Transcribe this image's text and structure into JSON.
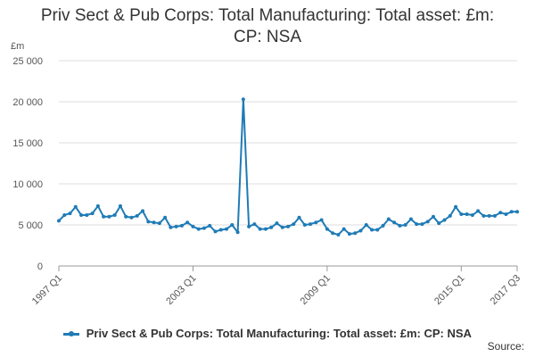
{
  "chart_data": {
    "type": "line",
    "title": "Priv Sect & Pub Corps: Total Manufacturing: Total asset: £m: CP: NSA",
    "ylabel": "£m",
    "ylim": [
      0,
      25000
    ],
    "yticks": [
      0,
      5000,
      10000,
      15000,
      20000,
      25000
    ],
    "ytick_labels": [
      "0",
      "5 000",
      "10 000",
      "15 000",
      "20 000",
      "25 000"
    ],
    "xtick_labels": [
      "1997 Q1",
      "2003 Q1",
      "2009 Q1",
      "2015 Q1",
      "2017 Q3"
    ],
    "grid": "horizontal",
    "legend_position": "bottom",
    "series": [
      {
        "name": "Priv Sect & Pub Corps: Total Manufacturing: Total asset: £m: CP: NSA",
        "color": "#1f7bb6",
        "values": [
          5500,
          6200,
          6400,
          7200,
          6200,
          6200,
          6400,
          7300,
          6000,
          6000,
          6200,
          7300,
          6000,
          5900,
          6100,
          6700,
          5400,
          5300,
          5200,
          5900,
          4700,
          4800,
          4900,
          5300,
          4800,
          4500,
          4600,
          4900,
          4200,
          4400,
          4500,
          5000,
          4100,
          20300,
          4800,
          5100,
          4500,
          4500,
          4700,
          5200,
          4700,
          4800,
          5100,
          5900,
          5000,
          5100,
          5300,
          5600,
          4500,
          4000,
          3800,
          4500,
          3900,
          4000,
          4300,
          5000,
          4400,
          4400,
          4900,
          5700,
          5300,
          4900,
          5000,
          5700,
          5100,
          5100,
          5400,
          6000,
          5200,
          5600,
          6100,
          7200,
          6300,
          6300,
          6200,
          6700,
          6100,
          6100,
          6100,
          6500,
          6300,
          6600,
          6600
        ]
      }
    ]
  },
  "legend": {
    "label": "Priv Sect & Pub Corps: Total Manufacturing: Total asset: £m: CP: NSA"
  },
  "source_label": "Source:"
}
